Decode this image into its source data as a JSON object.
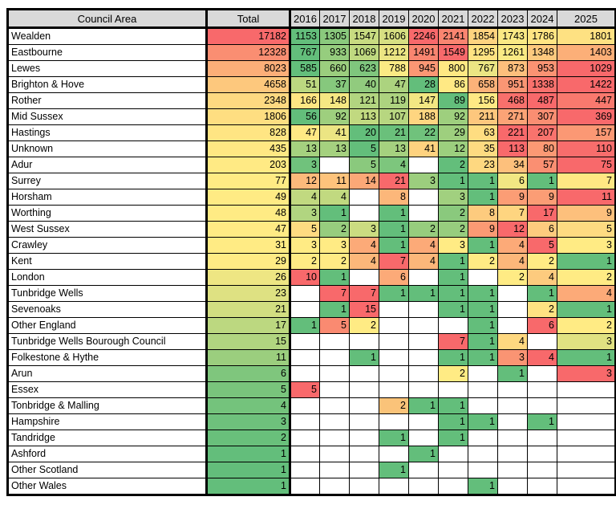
{
  "style": {
    "scale_min": "#63BE7B",
    "scale_mid": "#FFEB84",
    "scale_max": "#F8696B",
    "empty_cell": "#FFFFFF",
    "header_bg": "#D9D9D9",
    "border": "#000000",
    "text": "#000000"
  },
  "overrides": [
    {
      "row": "Essex",
      "year": "2016",
      "color": "#F8696B"
    },
    {
      "row": "Tonbridge & Malling",
      "year": "2019",
      "color": "#FAC379"
    }
  ],
  "chart_data": {
    "type": "table",
    "subtype": "heatmap",
    "color_scale": "green-yellow-red, per-row for year cells, whole-column for Total",
    "columns": [
      "Council Area",
      "Total",
      "2016",
      "2017",
      "2018",
      "2019",
      "2020",
      "2021",
      "2022",
      "2023",
      "2024",
      "2025"
    ],
    "rows": [
      {
        "name": "Wealden",
        "total": 17182,
        "values": [
          1153,
          1305,
          1547,
          1606,
          2246,
          2141,
          1854,
          1743,
          1786,
          1801
        ]
      },
      {
        "name": "Eastbourne",
        "total": 12328,
        "values": [
          767,
          933,
          1069,
          1212,
          1491,
          1549,
          1295,
          1261,
          1348,
          1403
        ]
      },
      {
        "name": "Lewes",
        "total": 8023,
        "values": [
          585,
          660,
          623,
          788,
          945,
          800,
          767,
          873,
          953,
          1029
        ]
      },
      {
        "name": "Brighton & Hove",
        "total": 4658,
        "values": [
          51,
          37,
          40,
          47,
          28,
          86,
          658,
          951,
          1338,
          1422
        ]
      },
      {
        "name": "Rother",
        "total": 2348,
        "values": [
          166,
          148,
          121,
          119,
          147,
          89,
          156,
          468,
          487,
          447
        ]
      },
      {
        "name": "Mid Sussex",
        "total": 1806,
        "values": [
          56,
          92,
          113,
          107,
          188,
          92,
          211,
          271,
          307,
          369
        ]
      },
      {
        "name": "Hastings",
        "total": 828,
        "values": [
          47,
          41,
          20,
          21,
          22,
          29,
          63,
          221,
          207,
          157
        ]
      },
      {
        "name": "Unknown",
        "total": 435,
        "values": [
          13,
          13,
          5,
          13,
          41,
          12,
          35,
          113,
          80,
          110
        ]
      },
      {
        "name": "Adur",
        "total": 203,
        "values": [
          3,
          null,
          5,
          4,
          null,
          2,
          23,
          34,
          57,
          75
        ]
      },
      {
        "name": "Surrey",
        "total": 77,
        "values": [
          12,
          11,
          14,
          21,
          3,
          1,
          1,
          6,
          1,
          7
        ]
      },
      {
        "name": "Horsham",
        "total": 49,
        "values": [
          4,
          4,
          null,
          8,
          null,
          3,
          1,
          9,
          9,
          11
        ]
      },
      {
        "name": "Worthing",
        "total": 48,
        "values": [
          3,
          1,
          null,
          1,
          null,
          2,
          8,
          7,
          17,
          9
        ]
      },
      {
        "name": "West Sussex",
        "total": 47,
        "values": [
          5,
          2,
          3,
          1,
          2,
          2,
          9,
          12,
          6,
          5
        ]
      },
      {
        "name": "Crawley",
        "total": 31,
        "values": [
          3,
          3,
          4,
          1,
          4,
          3,
          1,
          4,
          5,
          3
        ]
      },
      {
        "name": "Kent",
        "total": 29,
        "values": [
          2,
          2,
          4,
          7,
          4,
          1,
          2,
          4,
          2,
          1
        ]
      },
      {
        "name": "London",
        "total": 26,
        "values": [
          10,
          1,
          null,
          6,
          null,
          1,
          null,
          2,
          4,
          2
        ]
      },
      {
        "name": "Tunbridge Wells",
        "total": 23,
        "values": [
          null,
          7,
          7,
          1,
          1,
          1,
          1,
          null,
          1,
          4
        ]
      },
      {
        "name": "Sevenoaks",
        "total": 21,
        "values": [
          null,
          1,
          15,
          null,
          null,
          1,
          1,
          null,
          2,
          1
        ]
      },
      {
        "name": "Other England",
        "total": 17,
        "values": [
          1,
          5,
          2,
          null,
          null,
          null,
          1,
          null,
          6,
          2
        ]
      },
      {
        "name": "Tunbridge Wells Bourough Council",
        "total": 15,
        "values": [
          null,
          null,
          null,
          null,
          null,
          7,
          1,
          4,
          null,
          3
        ]
      },
      {
        "name": "Folkestone & Hythe",
        "total": 11,
        "values": [
          null,
          null,
          1,
          null,
          null,
          1,
          1,
          3,
          4,
          1
        ]
      },
      {
        "name": "Arun",
        "total": 6,
        "values": [
          null,
          null,
          null,
          null,
          null,
          2,
          null,
          1,
          null,
          3
        ]
      },
      {
        "name": "Essex",
        "total": 5,
        "values": [
          5,
          null,
          null,
          null,
          null,
          null,
          null,
          null,
          null,
          null
        ]
      },
      {
        "name": "Tonbridge & Malling",
        "total": 4,
        "values": [
          null,
          null,
          null,
          2,
          1,
          1,
          null,
          null,
          null,
          null
        ]
      },
      {
        "name": "Hampshire",
        "total": 3,
        "values": [
          null,
          null,
          null,
          null,
          null,
          1,
          1,
          null,
          1,
          null
        ]
      },
      {
        "name": "Tandridge",
        "total": 2,
        "values": [
          null,
          null,
          null,
          1,
          null,
          1,
          null,
          null,
          null,
          null
        ]
      },
      {
        "name": "Ashford",
        "total": 1,
        "values": [
          null,
          null,
          null,
          null,
          1,
          null,
          null,
          null,
          null,
          null
        ]
      },
      {
        "name": "Other Scotland",
        "total": 1,
        "values": [
          null,
          null,
          null,
          1,
          null,
          null,
          null,
          null,
          null,
          null
        ]
      },
      {
        "name": "Other Wales",
        "total": 1,
        "values": [
          null,
          null,
          null,
          null,
          null,
          null,
          1,
          null,
          null,
          null
        ]
      }
    ]
  }
}
